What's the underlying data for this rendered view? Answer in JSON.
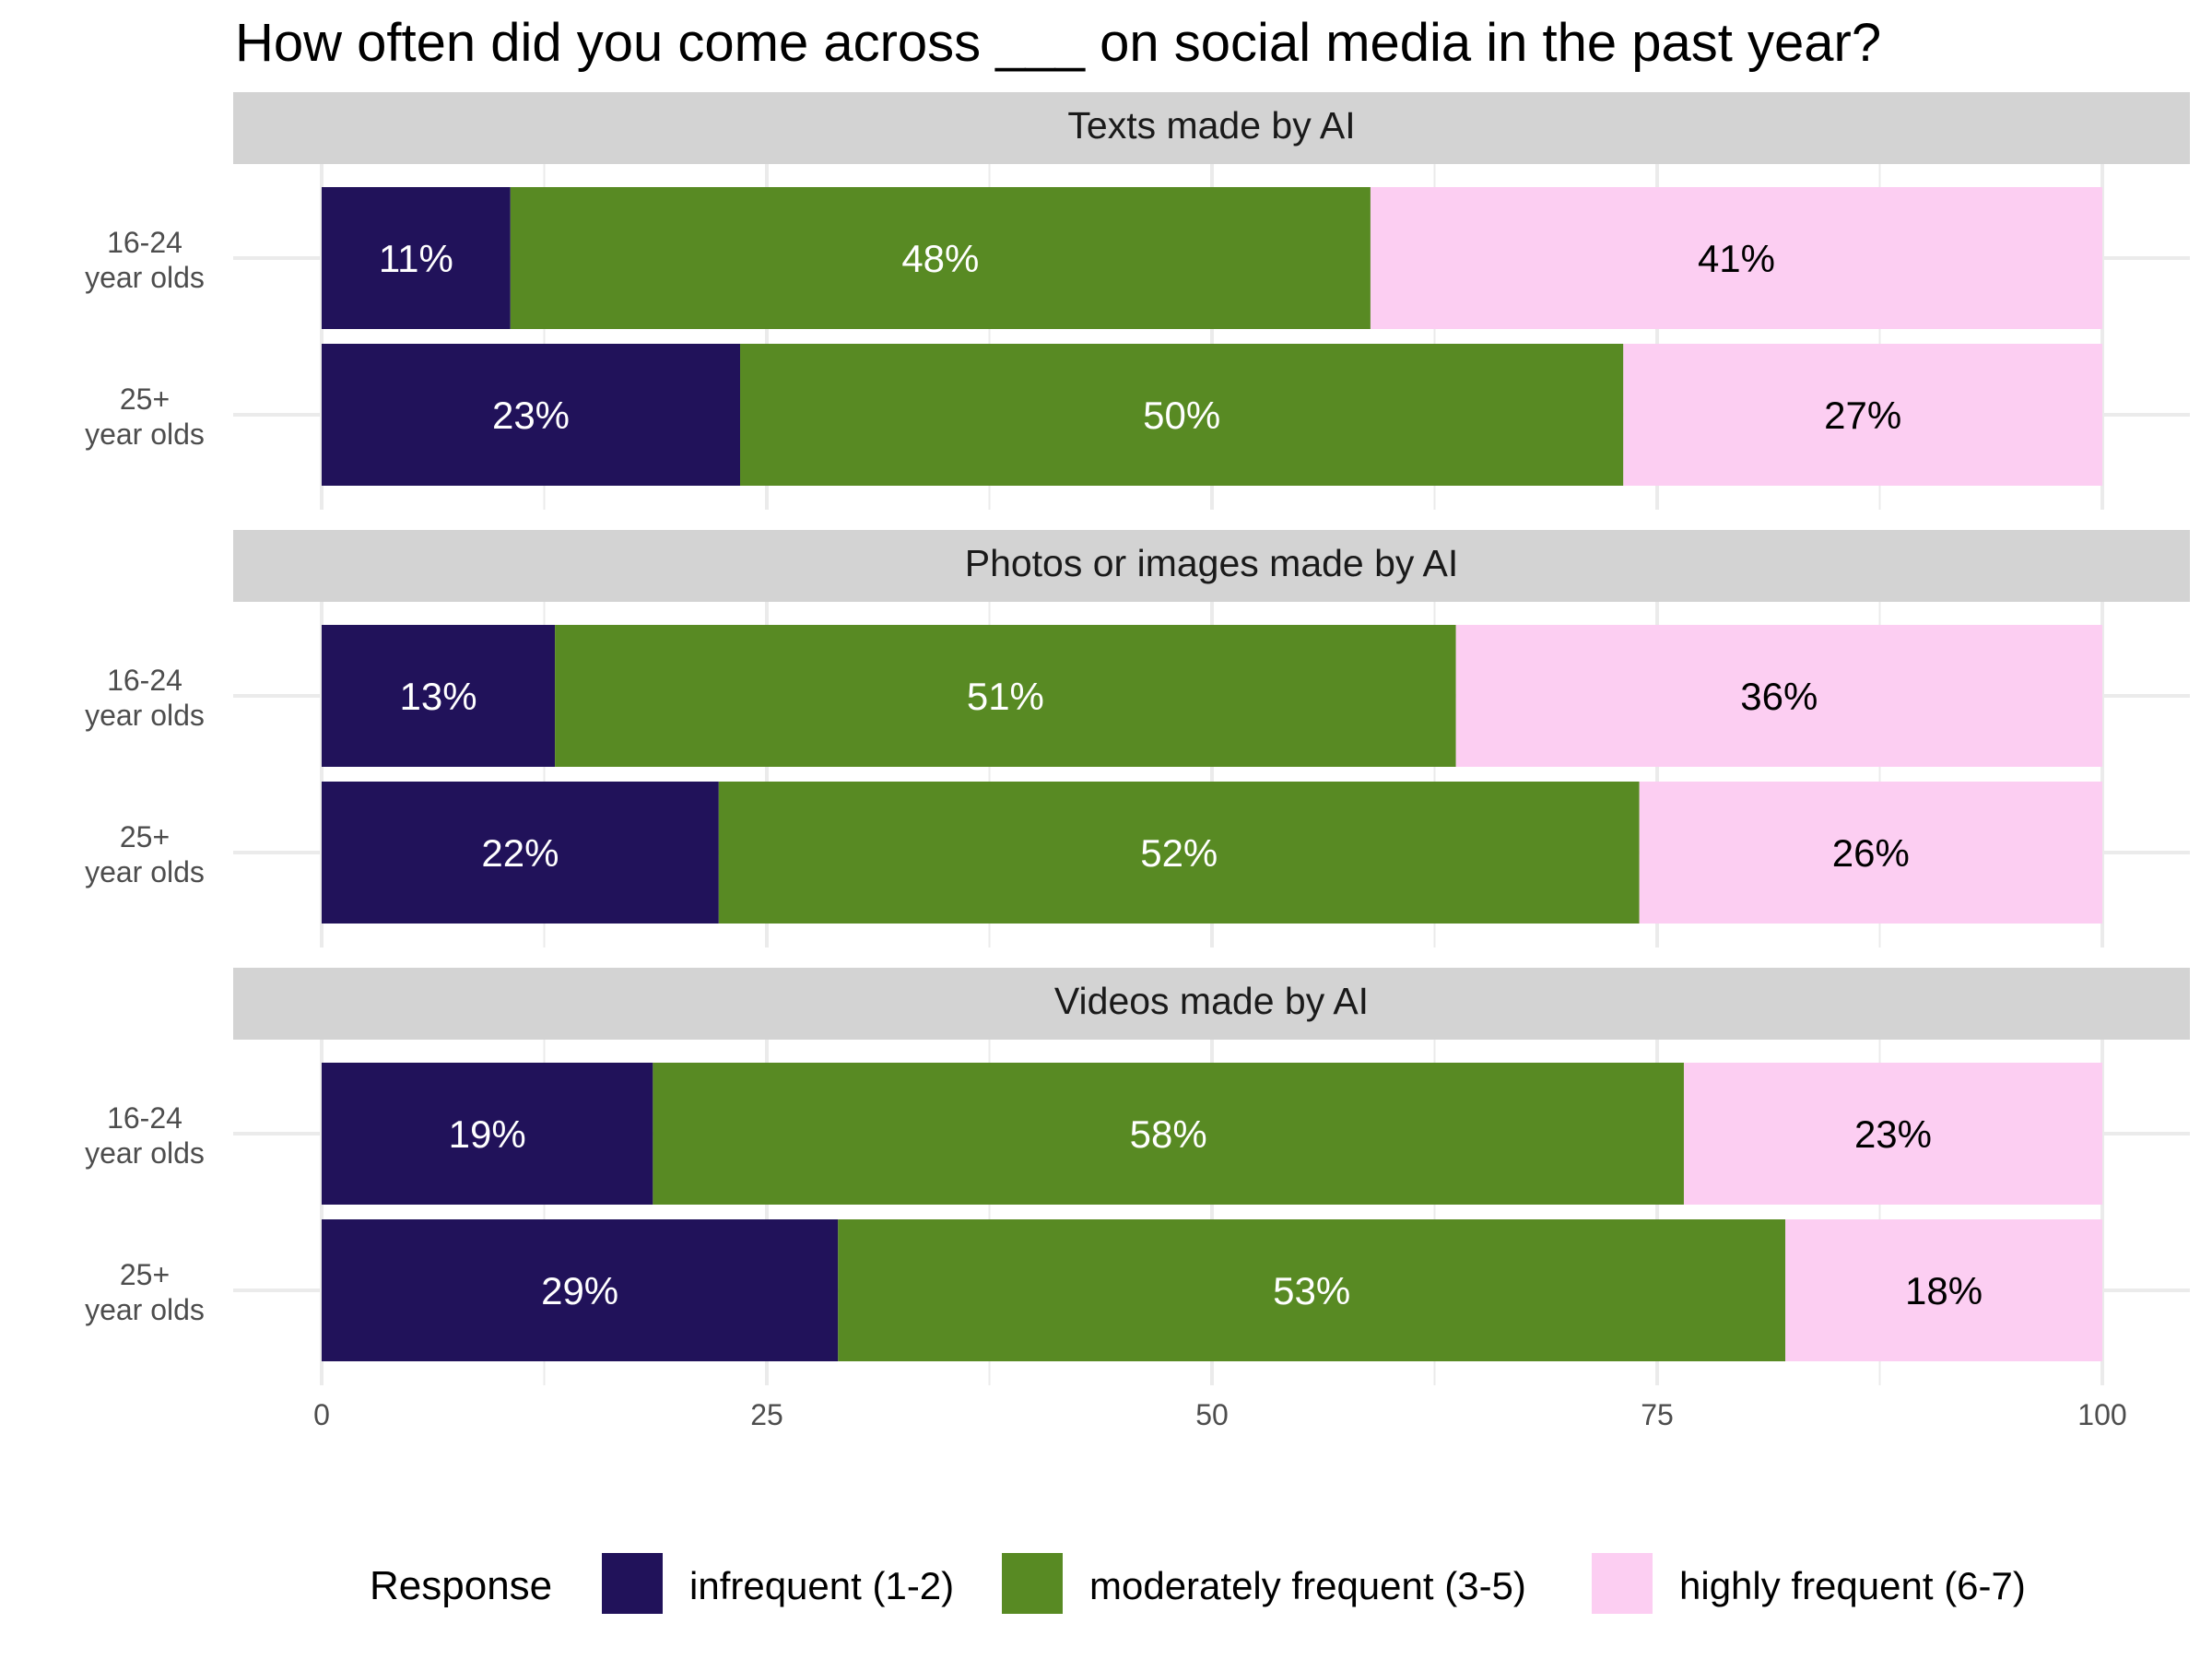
{
  "chart_data": {
    "type": "bar",
    "orientation": "horizontal",
    "stacked": true,
    "title": "How often did you come across ___ on social media in the past year?",
    "xlabel": "",
    "ylabel": "",
    "xlim": [
      0,
      100
    ],
    "x_ticks": [
      "0",
      "25",
      "50",
      "75",
      "100"
    ],
    "x_tick_values": [
      0,
      25,
      50,
      75,
      100
    ],
    "x_minor_tick_values": [
      12.5,
      37.5,
      62.5,
      87.5
    ],
    "grid": true,
    "categories": [
      {
        "line1": "16-24",
        "line2": "year olds"
      },
      {
        "line1": "25+",
        "line2": "year olds"
      }
    ],
    "legend": {
      "title": "Response",
      "position": "bottom",
      "entries": [
        {
          "label": "infrequent (1-2)",
          "color": "#21125a",
          "text_color": "#ffffff"
        },
        {
          "label": "moderately frequent (3-5)",
          "color": "#588a23",
          "text_color": "#ffffff"
        },
        {
          "label": "highly frequent (6-7)",
          "color": "#fccef2",
          "text_color": "#000000"
        }
      ]
    },
    "panels": [
      {
        "title": "Texts made by AI",
        "rows": [
          {
            "values": [
              10.6,
              48.3,
              41.1
            ],
            "labels": [
              "11%",
              "48%",
              "41%"
            ]
          },
          {
            "values": [
              23.5,
              49.6,
              26.9
            ],
            "labels": [
              "23%",
              "50%",
              "27%"
            ]
          }
        ]
      },
      {
        "title": "Photos or images made by AI",
        "rows": [
          {
            "values": [
              13.1,
              50.6,
              36.3
            ],
            "labels": [
              "13%",
              "51%",
              "36%"
            ]
          },
          {
            "values": [
              22.3,
              51.7,
              26.0
            ],
            "labels": [
              "22%",
              "52%",
              "26%"
            ]
          }
        ]
      },
      {
        "title": "Videos made by AI",
        "rows": [
          {
            "values": [
              18.6,
              57.9,
              23.5
            ],
            "labels": [
              "19%",
              "58%",
              "23%"
            ]
          },
          {
            "values": [
              29.0,
              53.2,
              17.8
            ],
            "labels": [
              "29%",
              "53%",
              "18%"
            ]
          }
        ]
      }
    ]
  },
  "colors": {
    "strip_background": "#d3d3d3",
    "gridline": "#ebebeb"
  }
}
